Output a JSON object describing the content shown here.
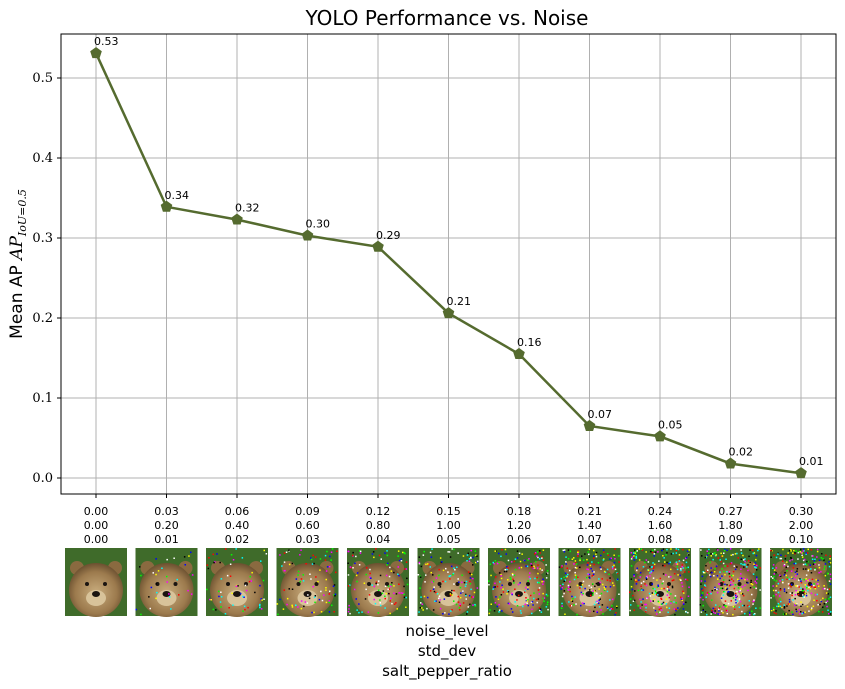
{
  "chart_data": {
    "type": "line",
    "title": "YOLO Performance vs. Noise",
    "ylabel": "Mean AP",
    "ylabel_subscript": "IoU=0.5",
    "xlabel_lines": [
      "noise_level",
      "std_dev",
      "salt_pepper_ratio"
    ],
    "x_tick_rows": {
      "noise_level": [
        "0.00",
        "0.03",
        "0.06",
        "0.09",
        "0.12",
        "0.15",
        "0.18",
        "0.21",
        "0.24",
        "0.27",
        "0.30"
      ],
      "std_dev": [
        "0.00",
        "0.20",
        "0.40",
        "0.60",
        "0.80",
        "1.00",
        "1.20",
        "1.40",
        "1.60",
        "1.80",
        "2.00"
      ],
      "salt_pepper_ratio": [
        "0.00",
        "0.01",
        "0.02",
        "0.03",
        "0.04",
        "0.05",
        "0.06",
        "0.07",
        "0.08",
        "0.09",
        "0.10"
      ]
    },
    "series": [
      {
        "values": [
          0.531,
          0.339,
          0.323,
          0.303,
          0.289,
          0.206,
          0.155,
          0.065,
          0.052,
          0.018,
          0.006
        ],
        "data_labels": [
          "0.53",
          "0.34",
          "0.32",
          "0.30",
          "0.29",
          "0.21",
          "0.16",
          "0.07",
          "0.05",
          "0.02",
          "0.01"
        ],
        "color": "#556b2f",
        "marker": "pentagon"
      }
    ],
    "ylim": [
      -0.02,
      0.555
    ],
    "yticks": [
      0.0,
      0.1,
      0.2,
      0.3,
      0.4,
      0.5
    ],
    "ytick_labels": [
      "0.0",
      "0.1",
      "0.2",
      "0.3",
      "0.4",
      "0.5"
    ],
    "grid": true,
    "thumbnail_images": "noisy bear photo per x position, noise increasing left to right"
  }
}
